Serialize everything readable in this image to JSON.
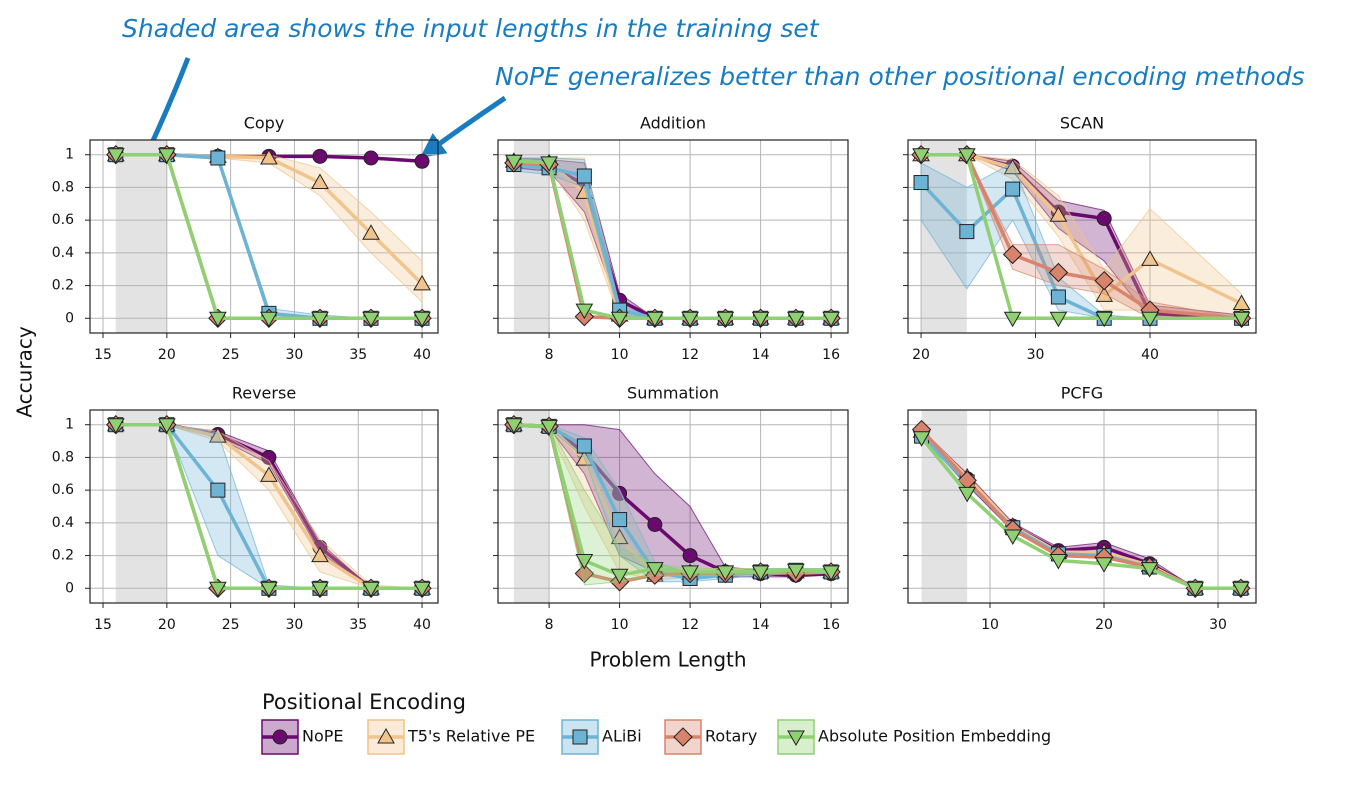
{
  "annotations": [
    "Shaded area shows the input lengths in the training set",
    "NoPE generalizes better than other positional encoding methods"
  ],
  "y_label": "Accuracy",
  "x_label": "Problem Length",
  "legend_title": "Positional Encoding",
  "chart_data": [
    {
      "type": "line",
      "title": "Copy",
      "x": [
        16,
        20,
        24,
        28,
        32,
        36,
        40
      ],
      "xlim": [
        13.98,
        41.25
      ],
      "ylim": [
        -0.09,
        1.09
      ],
      "xticks": [
        15,
        20,
        25,
        30,
        35,
        40
      ],
      "yticks": [
        0,
        0.2,
        0.4,
        0.6,
        0.8,
        1
      ],
      "show_yticklabels": true,
      "grid": true,
      "shade": [
        16,
        20
      ],
      "series": [
        {
          "name": "NoPE",
          "color": "#6b0a6e",
          "marker": "circle",
          "values": [
            1,
            1,
            0.99,
            0.99,
            0.99,
            0.98,
            0.96
          ]
        },
        {
          "name": "T5's Relative PE",
          "color": "#f0c48c",
          "marker": "triangle-up",
          "values": [
            1,
            1,
            0.99,
            0.98,
            0.83,
            0.52,
            0.21
          ],
          "lower": [
            1,
            1,
            0.98,
            0.95,
            0.75,
            0.4,
            0.1
          ],
          "upper": [
            1,
            1,
            1,
            1,
            0.92,
            0.65,
            0.35
          ]
        },
        {
          "name": "ALiBi",
          "color": "#6db3d4",
          "marker": "square",
          "values": [
            1,
            1,
            0.98,
            0.03,
            0,
            0,
            0
          ],
          "lower": [
            1,
            1,
            0.97,
            0,
            0,
            0,
            0
          ],
          "upper": [
            1,
            1,
            1,
            0.06,
            0.02,
            0,
            0
          ]
        },
        {
          "name": "Rotary",
          "color": "#d8836c",
          "marker": "diamond",
          "values": [
            1,
            1,
            0,
            0,
            0,
            0,
            0
          ]
        },
        {
          "name": "Absolute Position Embedding",
          "color": "#8fd072",
          "marker": "triangle-down",
          "values": [
            1,
            1,
            0,
            0,
            0,
            0,
            0
          ]
        }
      ]
    },
    {
      "type": "line",
      "title": "Addition",
      "x": [
        7,
        8,
        9,
        10,
        11,
        12,
        13,
        14,
        15,
        16
      ],
      "xlim": [
        6.55,
        16.48
      ],
      "ylim": [
        -0.09,
        1.09
      ],
      "xticks": [
        8,
        10,
        12,
        14,
        16
      ],
      "yticks": [
        0,
        0.2,
        0.4,
        0.6,
        0.8,
        1
      ],
      "show_yticklabels": false,
      "grid": true,
      "shade": [
        7,
        8
      ],
      "series": [
        {
          "name": "NoPE",
          "color": "#6b0a6e",
          "marker": "circle",
          "values": [
            0.95,
            0.93,
            0.82,
            0.11,
            0,
            0,
            0,
            0,
            0,
            0
          ],
          "lower": [
            0.92,
            0.9,
            0.65,
            0.05,
            0,
            0,
            0,
            0,
            0,
            0
          ],
          "upper": [
            0.98,
            0.97,
            0.95,
            0.15,
            0,
            0,
            0,
            0,
            0,
            0
          ]
        },
        {
          "name": "T5's Relative PE",
          "color": "#f0c48c",
          "marker": "triangle-up",
          "values": [
            0.96,
            0.95,
            0.77,
            0.02,
            0,
            0,
            0,
            0,
            0,
            0
          ],
          "lower": [
            0.94,
            0.92,
            0.6,
            0,
            0,
            0,
            0,
            0,
            0,
            0
          ],
          "upper": [
            0.98,
            0.98,
            0.98,
            0.06,
            0,
            0,
            0,
            0,
            0,
            0
          ]
        },
        {
          "name": "ALiBi",
          "color": "#6db3d4",
          "marker": "square",
          "values": [
            0.94,
            0.92,
            0.87,
            0.05,
            0,
            0,
            0,
            0,
            0,
            0
          ],
          "lower": [
            0.9,
            0.88,
            0.8,
            0.02,
            0,
            0,
            0,
            0,
            0,
            0
          ],
          "upper": [
            0.98,
            0.98,
            0.97,
            0.08,
            0,
            0,
            0,
            0,
            0,
            0
          ]
        },
        {
          "name": "Rotary",
          "color": "#d8836c",
          "marker": "diamond",
          "values": [
            0.95,
            0.94,
            0.01,
            0,
            0,
            0,
            0,
            0,
            0,
            0
          ]
        },
        {
          "name": "Absolute Position Embedding",
          "color": "#8fd072",
          "marker": "triangle-down",
          "values": [
            0.96,
            0.95,
            0.05,
            0,
            0,
            0,
            0,
            0,
            0,
            0
          ]
        }
      ]
    },
    {
      "type": "line",
      "title": "SCAN",
      "x": [
        20,
        24,
        28,
        32,
        36,
        40,
        48
      ],
      "xlim": [
        18.86,
        49.26
      ],
      "ylim": [
        -0.09,
        1.09
      ],
      "xticks": [
        20,
        30,
        40
      ],
      "yticks": [
        0,
        0.2,
        0.4,
        0.6,
        0.8,
        1
      ],
      "show_yticklabels": false,
      "grid": true,
      "shade": [
        20,
        24
      ],
      "series": [
        {
          "name": "NoPE",
          "color": "#6b0a6e",
          "marker": "circle",
          "values": [
            1,
            1,
            0.93,
            0.65,
            0.61,
            0.03,
            0
          ],
          "lower": [
            1,
            1,
            0.9,
            0.55,
            0.35,
            0,
            0
          ],
          "upper": [
            1,
            1,
            0.96,
            0.72,
            0.66,
            0.08,
            0.02
          ]
        },
        {
          "name": "T5's Relative PE",
          "color": "#f0c48c",
          "marker": "triangle-up",
          "values": [
            1,
            1,
            0.92,
            0.63,
            0.14,
            0.36,
            0.09
          ],
          "lower": [
            1,
            1,
            0.85,
            0.5,
            0.05,
            0.05,
            0
          ],
          "upper": [
            1,
            1,
            0.97,
            0.75,
            0.3,
            0.67,
            0.15
          ]
        },
        {
          "name": "ALiBi",
          "color": "#6db3d4",
          "marker": "square",
          "values": [
            0.83,
            0.53,
            0.79,
            0.13,
            0,
            0,
            0
          ],
          "lower": [
            0.6,
            0.18,
            0.6,
            0.05,
            0,
            0,
            0
          ],
          "upper": [
            0.95,
            0.8,
            0.95,
            0.25,
            0.02,
            0,
            0
          ]
        },
        {
          "name": "Rotary",
          "color": "#d8836c",
          "marker": "diamond",
          "values": [
            1,
            1,
            0.39,
            0.28,
            0.23,
            0.05,
            0
          ],
          "lower": [
            1,
            1,
            0.3,
            0.2,
            0.15,
            0,
            0
          ],
          "upper": [
            1,
            1,
            0.45,
            0.45,
            0.3,
            0.1,
            0
          ]
        },
        {
          "name": "Absolute Position Embedding",
          "color": "#8fd072",
          "marker": "triangle-down",
          "values": [
            1,
            1,
            0,
            0,
            0,
            0,
            0
          ]
        }
      ]
    },
    {
      "type": "line",
      "title": "Reverse",
      "x": [
        16,
        20,
        24,
        28,
        32,
        36,
        40
      ],
      "xlim": [
        13.98,
        41.25
      ],
      "ylim": [
        -0.09,
        1.09
      ],
      "xticks": [
        15,
        20,
        25,
        30,
        35,
        40
      ],
      "yticks": [
        0,
        0.2,
        0.4,
        0.6,
        0.8,
        1
      ],
      "show_yticklabels": true,
      "grid": true,
      "shade": [
        16,
        20
      ],
      "series": [
        {
          "name": "NoPE",
          "color": "#6b0a6e",
          "marker": "circle",
          "values": [
            1,
            1,
            0.94,
            0.8,
            0.25,
            0,
            0
          ],
          "lower": [
            1,
            1,
            0.92,
            0.76,
            0.22,
            0,
            0
          ],
          "upper": [
            1,
            1,
            0.96,
            0.84,
            0.28,
            0,
            0
          ]
        },
        {
          "name": "T5's Relative PE",
          "color": "#f0c48c",
          "marker": "triangle-up",
          "values": [
            1,
            1,
            0.93,
            0.69,
            0.2,
            0,
            0
          ],
          "lower": [
            1,
            1,
            0.9,
            0.6,
            0.1,
            0,
            0
          ],
          "upper": [
            1,
            1,
            0.96,
            0.78,
            0.3,
            0.02,
            0
          ]
        },
        {
          "name": "ALiBi",
          "color": "#6db3d4",
          "marker": "square",
          "values": [
            1,
            1,
            0.6,
            0,
            0,
            0,
            0
          ],
          "lower": [
            1,
            1,
            0.2,
            0,
            0,
            0,
            0
          ],
          "upper": [
            1,
            1,
            0.95,
            0.02,
            0,
            0,
            0
          ]
        },
        {
          "name": "Rotary",
          "color": "#d8836c",
          "marker": "diamond",
          "values": [
            1,
            1,
            0,
            0,
            0,
            0,
            0
          ]
        },
        {
          "name": "Absolute Position Embedding",
          "color": "#8fd072",
          "marker": "triangle-down",
          "values": [
            1,
            1,
            0,
            0,
            0,
            0,
            0
          ]
        }
      ]
    },
    {
      "type": "line",
      "title": "Summation",
      "x": [
        7,
        8,
        9,
        10,
        11,
        12,
        13,
        14,
        15,
        16
      ],
      "xlim": [
        6.55,
        16.48
      ],
      "ylim": [
        -0.09,
        1.09
      ],
      "xticks": [
        8,
        10,
        12,
        14,
        16
      ],
      "yticks": [
        0,
        0.2,
        0.4,
        0.6,
        0.8,
        1
      ],
      "show_yticklabels": false,
      "grid": true,
      "shade": [
        7,
        8
      ],
      "series": [
        {
          "name": "NoPE",
          "color": "#6b0a6e",
          "marker": "circle",
          "values": [
            1,
            0.99,
            0.83,
            0.58,
            0.39,
            0.2,
            0.1,
            0.09,
            0.08,
            0.09
          ],
          "lower": [
            0.99,
            0.98,
            0.7,
            0.2,
            0.1,
            0.08,
            0.07,
            0.07,
            0.07,
            0.08
          ],
          "upper": [
            1,
            1,
            1,
            0.97,
            0.7,
            0.5,
            0.13,
            0.11,
            0.1,
            0.1
          ]
        },
        {
          "name": "T5's Relative PE",
          "color": "#f0c48c",
          "marker": "triangle-up",
          "values": [
            1,
            0.99,
            0.79,
            0.31,
            0.08,
            0.09,
            0.1,
            0.1,
            0.1,
            0.1
          ],
          "lower": [
            0.99,
            0.98,
            0.5,
            0.1,
            0.05,
            0.07,
            0.08,
            0.08,
            0.09,
            0.09
          ],
          "upper": [
            1,
            1,
            0.9,
            0.6,
            0.15,
            0.12,
            0.12,
            0.12,
            0.12,
            0.12
          ]
        },
        {
          "name": "ALiBi",
          "color": "#6db3d4",
          "marker": "square",
          "values": [
            1,
            0.99,
            0.87,
            0.42,
            0.1,
            0.06,
            0.08,
            0.1,
            0.11,
            0.1
          ],
          "lower": [
            0.99,
            0.98,
            0.8,
            0.2,
            0.04,
            0.04,
            0.06,
            0.08,
            0.09,
            0.09
          ],
          "upper": [
            1,
            1,
            0.92,
            0.6,
            0.16,
            0.09,
            0.1,
            0.12,
            0.12,
            0.12
          ]
        },
        {
          "name": "Rotary",
          "color": "#d8836c",
          "marker": "diamond",
          "values": [
            1,
            0.99,
            0.09,
            0.04,
            0.08,
            0.09,
            0.09,
            0.1,
            0.09,
            0.1
          ]
        },
        {
          "name": "Absolute Position Embedding",
          "color": "#8fd072",
          "marker": "triangle-down",
          "values": [
            1,
            0.99,
            0.17,
            0.08,
            0.12,
            0.1,
            0.1,
            0.1,
            0.11,
            0.1
          ],
          "lower": [
            0.99,
            0.98,
            0.02,
            0.04,
            0.08,
            0.08,
            0.08,
            0.09,
            0.09,
            0.09
          ],
          "upper": [
            1,
            1,
            0.6,
            0.25,
            0.15,
            0.12,
            0.12,
            0.12,
            0.12,
            0.12
          ]
        }
      ]
    },
    {
      "type": "line",
      "title": "PCFG",
      "x": [
        4,
        8,
        12,
        16,
        20,
        24,
        28,
        32
      ],
      "xlim": [
        2.81,
        33.33
      ],
      "ylim": [
        -0.09,
        1.09
      ],
      "xticks": [
        10,
        20,
        30
      ],
      "yticks": [
        0,
        0.2,
        0.4,
        0.6,
        0.8,
        1
      ],
      "show_yticklabels": false,
      "grid": true,
      "shade": [
        4,
        8
      ],
      "series": [
        {
          "name": "NoPE",
          "color": "#6b0a6e",
          "marker": "circle",
          "values": [
            0.95,
            0.67,
            0.38,
            0.23,
            0.25,
            0.15,
            0,
            0
          ],
          "lower": [
            0.93,
            0.63,
            0.35,
            0.2,
            0.2,
            0.12,
            0,
            0
          ],
          "upper": [
            0.97,
            0.7,
            0.4,
            0.25,
            0.28,
            0.18,
            0,
            0
          ]
        },
        {
          "name": "T5's Relative PE",
          "color": "#f0c48c",
          "marker": "triangle-up",
          "values": [
            0.96,
            0.68,
            0.38,
            0.22,
            0.22,
            0.14,
            0,
            0
          ]
        },
        {
          "name": "ALiBi",
          "color": "#6db3d4",
          "marker": "square",
          "values": [
            0.93,
            0.65,
            0.37,
            0.21,
            0.2,
            0.13,
            0,
            0
          ]
        },
        {
          "name": "Rotary",
          "color": "#d8836c",
          "marker": "diamond",
          "values": [
            0.97,
            0.66,
            0.36,
            0.2,
            0.19,
            0.13,
            0,
            0
          ]
        },
        {
          "name": "Absolute Position Embedding",
          "color": "#8fd072",
          "marker": "triangle-down",
          "values": [
            0.92,
            0.58,
            0.32,
            0.17,
            0.15,
            0.12,
            0,
            0
          ]
        }
      ]
    }
  ]
}
